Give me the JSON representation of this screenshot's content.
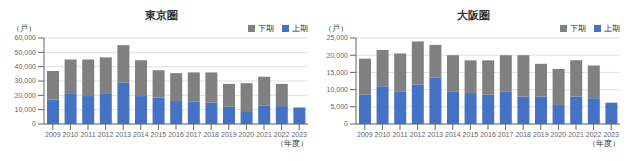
{
  "chart_data": [
    {
      "type": "bar",
      "title": "東京圏",
      "ylabel": "（戸）",
      "xlabel": "（年度）",
      "stacked": true,
      "grid": true,
      "legend": "upper right",
      "categories": [
        "2009",
        "2010",
        "2011",
        "2012",
        "2013",
        "2014",
        "2015",
        "2016",
        "2017",
        "2018",
        "2019",
        "2020",
        "2021",
        "2022",
        "2023"
      ],
      "series": [
        {
          "name": "上期",
          "color": "#4472c4",
          "values": [
            17000,
            21500,
            19500,
            21500,
            29000,
            19500,
            18500,
            16000,
            15500,
            15000,
            12000,
            9000,
            13000,
            12500,
            11500
          ]
        },
        {
          "name": "下期",
          "color": "#808080",
          "values": [
            20000,
            23500,
            25500,
            25000,
            26000,
            25000,
            19000,
            19500,
            20500,
            21000,
            16000,
            19500,
            20000,
            15500,
            0
          ]
        }
      ],
      "ylim": [
        0,
        60000
      ],
      "yticks": [
        0,
        {
          "value": 10000,
          "label": "10,000"
        },
        {
          "value": 20000,
          "label": "20,000"
        },
        {
          "value": 30000,
          "label": "30,000"
        },
        {
          "value": 40000,
          "label": "40,000"
        },
        {
          "value": 50000,
          "label": "50,000"
        },
        {
          "value": 60000,
          "label": "60,000"
        }
      ]
    },
    {
      "type": "bar",
      "title": "大阪圏",
      "ylabel": "（戸）",
      "xlabel": "（年度）",
      "stacked": true,
      "grid": true,
      "legend": "upper right",
      "categories": [
        "2009",
        "2010",
        "2011",
        "2012",
        "2013",
        "2014",
        "2015",
        "2016",
        "2017",
        "2018",
        "2019",
        "2020",
        "2021",
        "2022",
        "2023"
      ],
      "series": [
        {
          "name": "上期",
          "color": "#4472c4",
          "values": [
            8500,
            11000,
            9500,
            11500,
            13500,
            9500,
            9000,
            8500,
            9500,
            8000,
            8000,
            5500,
            8000,
            7500,
            6200
          ]
        },
        {
          "name": "下期",
          "color": "#808080",
          "values": [
            10500,
            10500,
            11000,
            12500,
            9500,
            10500,
            9500,
            10000,
            10500,
            12000,
            9500,
            10500,
            10500,
            9500,
            0
          ]
        }
      ],
      "ylim": [
        0,
        25000
      ],
      "yticks": [
        0,
        {
          "value": 5000,
          "label": "5,000"
        },
        {
          "value": 10000,
          "label": "10,000"
        },
        {
          "value": 15000,
          "label": "15,000"
        },
        {
          "value": 20000,
          "label": "20,000"
        },
        {
          "value": 25000,
          "label": "25,000"
        }
      ]
    }
  ]
}
